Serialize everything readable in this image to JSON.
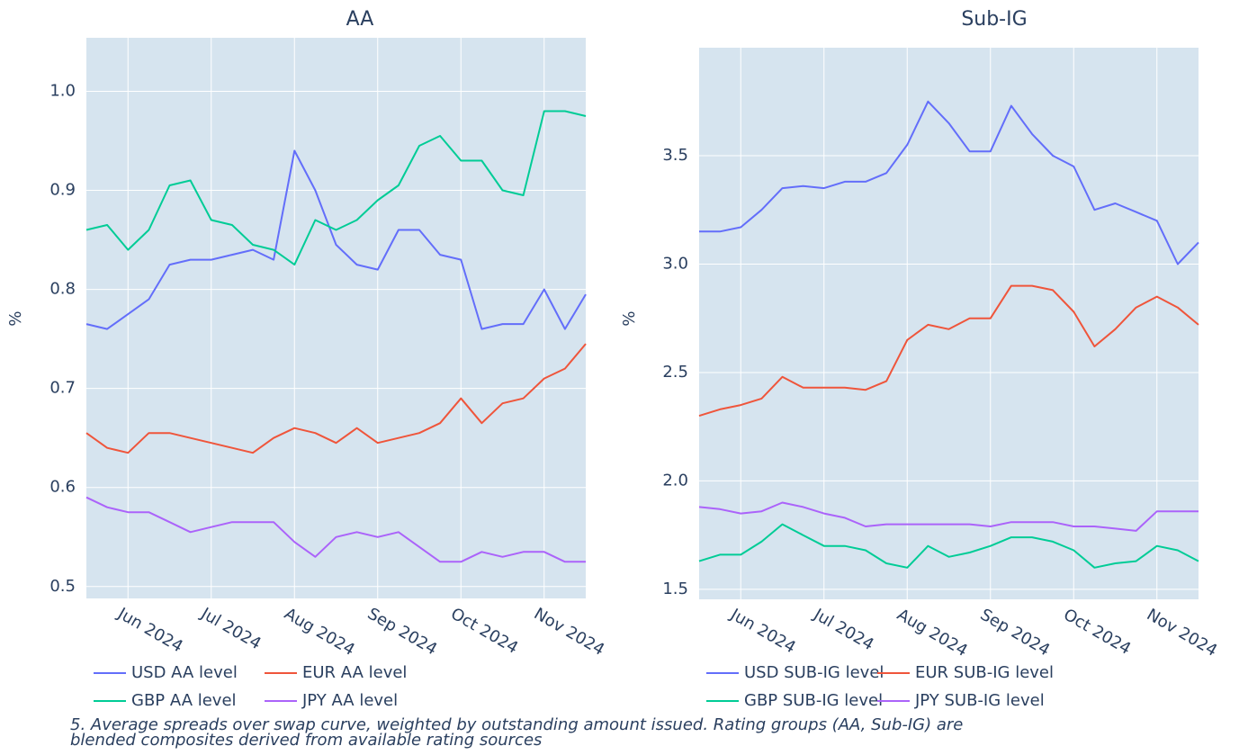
{
  "chart_data": [
    {
      "type": "line",
      "title": "AA",
      "y_label": "%",
      "categories": [
        null,
        null,
        "Jun 2024",
        null,
        null,
        null,
        "Jul 2024",
        null,
        null,
        null,
        "Aug 2024",
        null,
        null,
        null,
        "Sep 2024",
        null,
        null,
        null,
        "Oct 2024",
        null,
        null,
        null,
        "Nov 2024",
        null,
        null
      ],
      "series": [
        {
          "name": "USD AA level",
          "color": "#636efa",
          "values": [
            0.765,
            0.76,
            0.775,
            0.79,
            0.825,
            0.83,
            0.83,
            0.835,
            0.84,
            0.83,
            0.94,
            0.9,
            0.845,
            0.825,
            0.82,
            0.86,
            0.86,
            0.835,
            0.83,
            0.76,
            0.765,
            0.765,
            0.8,
            0.76,
            0.795
          ]
        },
        {
          "name": "EUR AA level",
          "color": "#ef553b",
          "values": [
            0.655,
            0.64,
            0.635,
            0.655,
            0.655,
            0.65,
            0.645,
            0.64,
            0.635,
            0.65,
            0.66,
            0.655,
            0.645,
            0.66,
            0.645,
            0.65,
            0.655,
            0.665,
            0.69,
            0.665,
            0.685,
            0.69,
            0.71,
            0.72,
            0.745
          ]
        },
        {
          "name": "GBP AA level",
          "color": "#00cc96",
          "values": [
            0.86,
            0.865,
            0.84,
            0.86,
            0.905,
            0.91,
            0.87,
            0.865,
            0.845,
            0.84,
            0.825,
            0.87,
            0.86,
            0.87,
            0.89,
            0.905,
            0.945,
            0.955,
            0.93,
            0.93,
            0.9,
            0.895,
            0.98,
            0.98,
            0.975
          ]
        },
        {
          "name": "JPY AA level",
          "color": "#ab63fa",
          "values": [
            0.59,
            0.58,
            0.575,
            0.575,
            0.565,
            0.555,
            0.56,
            0.565,
            0.565,
            0.565,
            0.545,
            0.53,
            0.55,
            0.555,
            0.55,
            0.555,
            0.54,
            0.525,
            0.525,
            0.535,
            0.53,
            0.535,
            0.535,
            0.525,
            0.525
          ]
        }
      ],
      "ylim": [
        0.488,
        1.054
      ],
      "yticks": [
        0.5,
        0.6,
        0.7,
        0.8,
        0.9,
        {
          "value": 1,
          "label": "1.0"
        }
      ],
      "grid": true
    },
    {
      "type": "line",
      "title": "Sub-IG",
      "y_label": "%",
      "categories": [
        null,
        null,
        "Jun 2024",
        null,
        null,
        null,
        "Jul 2024",
        null,
        null,
        null,
        "Aug 2024",
        null,
        null,
        null,
        "Sep 2024",
        null,
        null,
        null,
        "Oct 2024",
        null,
        null,
        null,
        "Nov 2024",
        null,
        null
      ],
      "series": [
        {
          "name": "USD SUB-IG level",
          "color": "#636efa",
          "values": [
            3.15,
            3.15,
            3.17,
            3.25,
            3.35,
            3.36,
            3.35,
            3.38,
            3.38,
            3.42,
            3.55,
            3.75,
            3.65,
            3.52,
            3.52,
            3.73,
            3.6,
            3.5,
            3.45,
            3.25,
            3.28,
            3.24,
            3.2,
            3.0,
            3.1
          ]
        },
        {
          "name": "EUR SUB-IG level",
          "color": "#ef553b",
          "values": [
            2.3,
            2.33,
            2.35,
            2.38,
            2.48,
            2.43,
            2.43,
            2.43,
            2.42,
            2.46,
            2.65,
            2.72,
            2.7,
            2.75,
            2.75,
            2.9,
            2.9,
            2.88,
            2.78,
            2.62,
            2.7,
            2.8,
            2.85,
            2.8,
            2.72
          ]
        },
        {
          "name": "GBP SUB-IG level",
          "color": "#00cc96",
          "values": [
            1.63,
            1.66,
            1.66,
            1.72,
            1.8,
            1.75,
            1.7,
            1.7,
            1.68,
            1.62,
            1.6,
            1.7,
            1.65,
            1.67,
            1.7,
            1.74,
            1.74,
            1.72,
            1.68,
            1.6,
            1.62,
            1.63,
            1.7,
            1.68,
            1.63
          ]
        },
        {
          "name": "JPY SUB-IG level",
          "color": "#ab63fa",
          "values": [
            1.88,
            1.87,
            1.85,
            1.86,
            1.9,
            1.88,
            1.85,
            1.83,
            1.79,
            1.8,
            1.8,
            1.8,
            1.8,
            1.8,
            1.79,
            1.81,
            1.81,
            1.81,
            1.79,
            1.79,
            1.78,
            1.77,
            1.86,
            1.86,
            1.86
          ]
        }
      ],
      "ylim": [
        1.454,
        3.998
      ],
      "yticks": [
        1.5,
        {
          "value": 2,
          "label": "2.0"
        },
        2.5,
        {
          "value": 3,
          "label": "3.0"
        },
        3.5
      ],
      "grid": true
    }
  ],
  "footnote": "5. Average spreads over swap curve, weighted by outstanding amount issued. Rating groups (AA, Sub-IG) are blended composites derived from available rating sources"
}
